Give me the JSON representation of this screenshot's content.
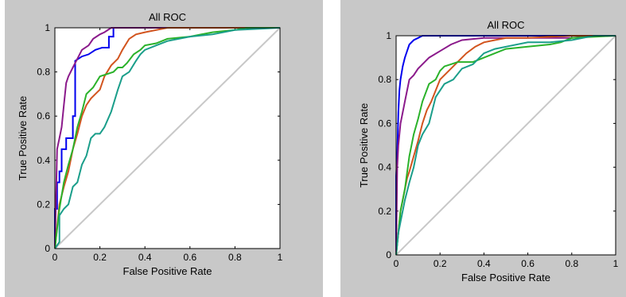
{
  "chart_data": [
    {
      "type": "line",
      "title": "All ROC",
      "xlabel": "False Positive Rate",
      "ylabel": "True Positive Rate",
      "xlim": [
        0,
        1
      ],
      "ylim": [
        0,
        1
      ],
      "xticks": [
        "0",
        "0.2",
        "0.4",
        "0.6",
        "0.8",
        "1"
      ],
      "yticks": [
        "0",
        "0.2",
        "0.4",
        "0.6",
        "0.8",
        "1"
      ],
      "grid": false,
      "diagonal": {
        "x": [
          0,
          1
        ],
        "y": [
          0,
          1
        ],
        "color": "#c8c8c8"
      },
      "series": [
        {
          "color": "#0000ee",
          "x": [
            0,
            0,
            0.01,
            0.01,
            0.02,
            0.02,
            0.03,
            0.03,
            0.05,
            0.05,
            0.08,
            0.08,
            0.09,
            0.09,
            0.12,
            0.15,
            0.18,
            0.21,
            0.24,
            0.24,
            0.26,
            0.26,
            0.4,
            0.6,
            0.8,
            1
          ],
          "y": [
            0,
            0.18,
            0.18,
            0.3,
            0.3,
            0.35,
            0.35,
            0.45,
            0.45,
            0.5,
            0.5,
            0.6,
            0.6,
            0.85,
            0.87,
            0.88,
            0.9,
            0.91,
            0.91,
            0.96,
            0.96,
            1,
            1,
            1,
            1,
            1
          ]
        },
        {
          "color": "#8b1a8b",
          "x": [
            0,
            0.01,
            0.02,
            0.03,
            0.04,
            0.05,
            0.06,
            0.08,
            0.1,
            0.12,
            0.15,
            0.17,
            0.2,
            0.22,
            0.25,
            0.3,
            0.4,
            0.6,
            0.8,
            1
          ],
          "y": [
            0,
            0.45,
            0.5,
            0.55,
            0.65,
            0.75,
            0.78,
            0.82,
            0.86,
            0.9,
            0.92,
            0.95,
            0.97,
            0.98,
            1,
            1,
            1,
            1,
            1,
            1
          ]
        },
        {
          "color": "#d2541e",
          "x": [
            0,
            0.02,
            0.04,
            0.06,
            0.08,
            0.1,
            0.12,
            0.14,
            0.16,
            0.18,
            0.2,
            0.22,
            0.25,
            0.28,
            0.3,
            0.33,
            0.36,
            0.4,
            0.45,
            0.5,
            0.6,
            0.7,
            0.8,
            1
          ],
          "y": [
            0,
            0.2,
            0.28,
            0.35,
            0.45,
            0.52,
            0.6,
            0.65,
            0.68,
            0.7,
            0.72,
            0.78,
            0.83,
            0.86,
            0.9,
            0.95,
            0.97,
            0.98,
            0.99,
            1,
            1,
            1,
            1,
            1
          ]
        },
        {
          "color": "#2ab22a",
          "x": [
            0,
            0.02,
            0.04,
            0.06,
            0.08,
            0.1,
            0.12,
            0.14,
            0.17,
            0.2,
            0.23,
            0.26,
            0.28,
            0.3,
            0.32,
            0.35,
            0.38,
            0.4,
            0.45,
            0.5,
            0.6,
            0.7,
            0.8,
            0.85,
            1
          ],
          "y": [
            0,
            0.18,
            0.3,
            0.38,
            0.45,
            0.55,
            0.62,
            0.7,
            0.73,
            0.78,
            0.79,
            0.8,
            0.82,
            0.82,
            0.84,
            0.88,
            0.9,
            0.92,
            0.93,
            0.95,
            0.96,
            0.98,
            0.99,
            1,
            1
          ]
        },
        {
          "color": "#1a9e8a",
          "x": [
            0,
            0.02,
            0.02,
            0.04,
            0.06,
            0.08,
            0.1,
            0.12,
            0.14,
            0.16,
            0.18,
            0.2,
            0.22,
            0.25,
            0.28,
            0.3,
            0.33,
            0.36,
            0.38,
            0.4,
            0.45,
            0.5,
            0.6,
            0.7,
            0.8,
            1
          ],
          "y": [
            0,
            0.03,
            0.15,
            0.18,
            0.2,
            0.28,
            0.3,
            0.38,
            0.42,
            0.5,
            0.52,
            0.52,
            0.55,
            0.62,
            0.72,
            0.78,
            0.8,
            0.85,
            0.88,
            0.9,
            0.92,
            0.94,
            0.96,
            0.97,
            0.99,
            1
          ]
        }
      ]
    },
    {
      "type": "line",
      "title": "All ROC",
      "xlabel": "False Positive Rate",
      "ylabel": "True Positive Rate",
      "xlim": [
        0,
        1
      ],
      "ylim": [
        0,
        1
      ],
      "xticks": [
        "0",
        "0.2",
        "0.4",
        "0.6",
        "0.8",
        "1"
      ],
      "yticks": [
        "0",
        "0.2",
        "0.4",
        "0.6",
        "0.8",
        "1"
      ],
      "grid": false,
      "diagonal": {
        "x": [
          0,
          1
        ],
        "y": [
          0,
          1
        ],
        "color": "#c8c8c8"
      },
      "series": [
        {
          "color": "#0000ee",
          "x": [
            0,
            0,
            0.005,
            0.01,
            0.015,
            0.02,
            0.03,
            0.04,
            0.05,
            0.06,
            0.08,
            0.1,
            0.12,
            0.15,
            0.2,
            0.4,
            0.6,
            0.8,
            1
          ],
          "y": [
            0,
            0.36,
            0.45,
            0.65,
            0.75,
            0.8,
            0.86,
            0.9,
            0.93,
            0.96,
            0.98,
            0.99,
            1,
            1,
            1,
            1,
            1,
            1,
            1
          ]
        },
        {
          "color": "#8b1a8b",
          "x": [
            0,
            0.005,
            0.01,
            0.02,
            0.03,
            0.04,
            0.05,
            0.06,
            0.08,
            0.1,
            0.12,
            0.15,
            0.2,
            0.25,
            0.3,
            0.4,
            0.5,
            0.6,
            0.7,
            0.8,
            0.9,
            1
          ],
          "y": [
            0,
            0.4,
            0.5,
            0.6,
            0.65,
            0.7,
            0.75,
            0.8,
            0.82,
            0.85,
            0.87,
            0.9,
            0.93,
            0.96,
            0.98,
            0.99,
            0.99,
            0.99,
            0.99,
            0.99,
            1,
            1
          ]
        },
        {
          "color": "#d2541e",
          "x": [
            0,
            0.01,
            0.02,
            0.03,
            0.04,
            0.05,
            0.06,
            0.08,
            0.1,
            0.12,
            0.14,
            0.16,
            0.18,
            0.2,
            0.24,
            0.28,
            0.32,
            0.36,
            0.4,
            0.45,
            0.5,
            0.6,
            0.8,
            1
          ],
          "y": [
            0,
            0.1,
            0.2,
            0.25,
            0.3,
            0.35,
            0.38,
            0.45,
            0.52,
            0.6,
            0.66,
            0.7,
            0.75,
            0.8,
            0.84,
            0.88,
            0.92,
            0.95,
            0.97,
            0.98,
            0.99,
            0.99,
            1,
            1
          ]
        },
        {
          "color": "#2ab22a",
          "x": [
            0,
            0.01,
            0.02,
            0.04,
            0.06,
            0.08,
            0.1,
            0.12,
            0.15,
            0.18,
            0.2,
            0.22,
            0.25,
            0.28,
            0.3,
            0.35,
            0.4,
            0.45,
            0.5,
            0.6,
            0.7,
            0.75,
            0.8,
            1
          ],
          "y": [
            0,
            0.1,
            0.2,
            0.3,
            0.45,
            0.55,
            0.62,
            0.7,
            0.78,
            0.8,
            0.84,
            0.86,
            0.87,
            0.88,
            0.88,
            0.88,
            0.9,
            0.92,
            0.94,
            0.95,
            0.96,
            0.97,
            0.99,
            1
          ]
        },
        {
          "color": "#1a9e8a",
          "x": [
            0,
            0.01,
            0.02,
            0.04,
            0.06,
            0.08,
            0.1,
            0.12,
            0.15,
            0.18,
            0.22,
            0.26,
            0.3,
            0.35,
            0.38,
            0.4,
            0.45,
            0.5,
            0.6,
            0.7,
            0.8,
            0.85,
            0.9,
            1
          ],
          "y": [
            0,
            0.1,
            0.15,
            0.25,
            0.33,
            0.4,
            0.5,
            0.55,
            0.6,
            0.72,
            0.78,
            0.8,
            0.85,
            0.87,
            0.9,
            0.92,
            0.94,
            0.95,
            0.97,
            0.97,
            0.98,
            0.99,
            1,
            1
          ]
        }
      ]
    }
  ]
}
